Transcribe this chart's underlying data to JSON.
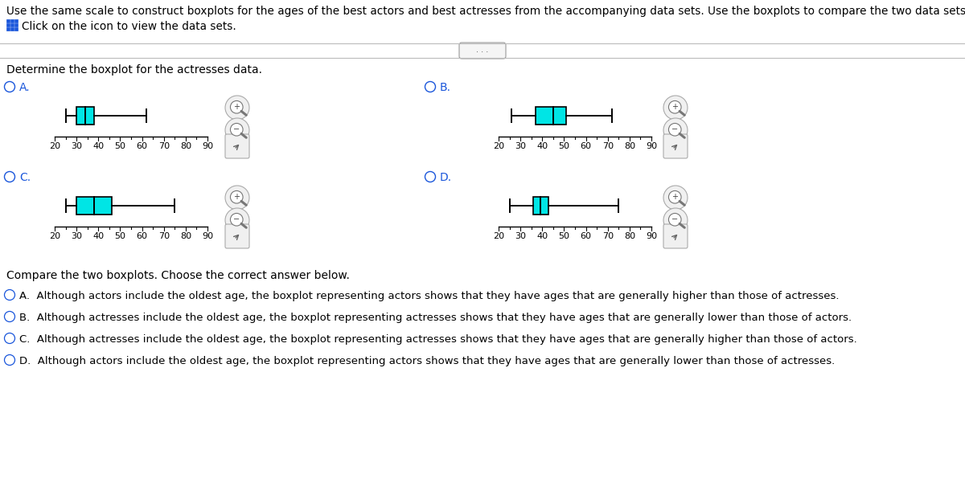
{
  "title_text": "Use the same scale to construct boxplots for the ages of the best actors and best actresses from the accompanying data sets. Use the boxplots to compare the two data sets.",
  "subtitle_text": "Click on the icon to view the data sets.",
  "question_text": "Determine the boxplot for the actresses data.",
  "axis_range": [
    20,
    90
  ],
  "box_color": "#00e5e5",
  "box_edge_color": "#000000",
  "whisker_color": "#000000",
  "option_color": "#1a56db",
  "boxplots": {
    "A": {
      "min": 25,
      "q1": 30,
      "median": 34,
      "q3": 38,
      "max": 62
    },
    "B": {
      "min": 26,
      "q1": 37,
      "median": 45,
      "q3": 51,
      "max": 72
    },
    "C": {
      "min": 25,
      "q1": 30,
      "median": 38,
      "q3": 46,
      "max": 75
    },
    "D": {
      "min": 25,
      "q1": 36,
      "median": 39,
      "q3": 43,
      "max": 75
    }
  },
  "compare_text": "Compare the two boxplots. Choose the correct answer below.",
  "answers": [
    "A.  Although actors include the oldest age, the boxplot representing actors shows that they have ages that are generally higher than those of actresses.",
    "B.  Although actresses include the oldest age, the boxplot representing actresses shows that they have ages that are generally lower than those of actors.",
    "C.  Although actresses include the oldest age, the boxplot representing actresses shows that they have ages that are generally higher than those of actors.",
    "D.  Although actors include the oldest age, the boxplot representing actors shows that they have ages that are generally lower than those of actresses."
  ],
  "bg_color": "#ffffff",
  "text_color": "#000000",
  "font_size_title": 9.8,
  "font_size_label": 10,
  "font_size_answer": 9.5,
  "font_size_axis": 8
}
